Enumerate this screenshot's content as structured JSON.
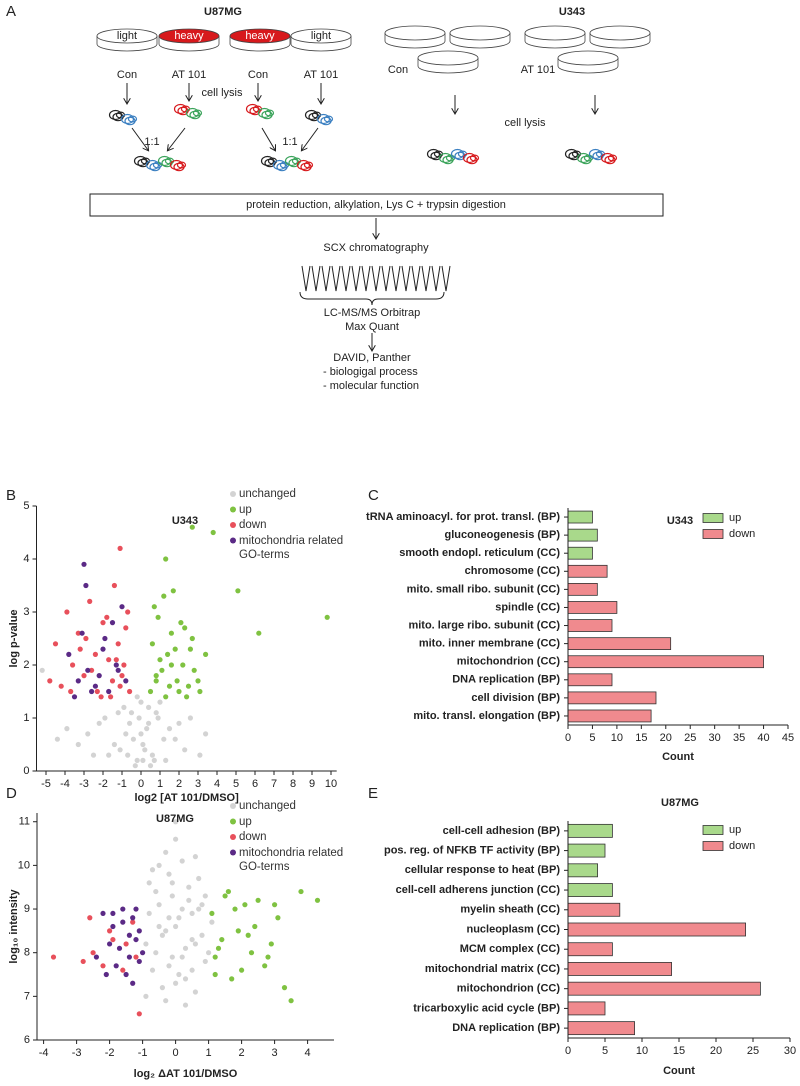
{
  "figure": {
    "panel_labels": [
      "A",
      "B",
      "C",
      "D",
      "E"
    ]
  },
  "diagram": {
    "titles": [
      "U87MG",
      "U343"
    ],
    "dish_labels": [
      "light",
      "heavy",
      "heavy",
      "light"
    ],
    "conditions": [
      "Con",
      "AT 101",
      "Con",
      "AT 101",
      "Con",
      "AT 101"
    ],
    "lysis": [
      "cell lysis",
      "cell lysis"
    ],
    "ratios": [
      "1:1",
      "1:1"
    ],
    "steps": [
      "protein reduction, alkylation, Lys C + trypsin digestion",
      "SCX chromatography",
      "LC-MS/MS Orbitrap",
      "Max Quant",
      "DAVID, Panther",
      "- biologigal process",
      "- molecular function"
    ]
  },
  "chart_data": [
    {
      "type": "scatter",
      "title": "U343",
      "xlabel": "log2 [AT 101/DMSO]",
      "ylabel": "log p-value",
      "xlim": [
        -5.5,
        10.3
      ],
      "ylim": [
        0,
        5
      ],
      "xticks": [
        -5,
        -4,
        -3,
        -2,
        -1,
        0,
        1,
        2,
        3,
        4,
        5,
        6,
        7,
        8,
        9,
        10
      ],
      "yticks": [
        0,
        1,
        2,
        3,
        4,
        5
      ],
      "legend": "upper right",
      "series": [
        {
          "name": "unchanged",
          "color": "#d3d3d3",
          "x": [
            -0.2,
            0.1,
            0.3,
            -0.5,
            0.6,
            -0.8,
            0.9,
            -1.1,
            1.2,
            0.0,
            -0.3,
            0.4,
            -0.6,
            0.7,
            -1.4,
            1.5,
            -0.1,
            0.2,
            -0.9,
            1.0,
            -1.7,
            1.8,
            -2.2,
            2.3,
            -2.8,
            2.6,
            -3.3,
            -3.9,
            3.1,
            0.5,
            -0.4,
            0.8,
            -1.2,
            1.3,
            0.0,
            -0.7,
            0.4,
            -1.9,
            2.0,
            -0.2,
            0.1,
            -2.5,
            -4.4,
            3.4,
            -5.2
          ],
          "y": [
            0.2,
            0.5,
            0.8,
            1.1,
            0.3,
            0.7,
            1.0,
            0.4,
            0.6,
            1.3,
            0.1,
            1.2,
            0.9,
            0.2,
            0.5,
            0.8,
            1.0,
            0.4,
            1.2,
            1.3,
            0.3,
            0.6,
            0.9,
            0.4,
            0.7,
            1.0,
            0.5,
            0.8,
            0.3,
            0.1,
            0.6,
            1.1,
            1.1,
            0.2,
            0.7,
            0.3,
            0.9,
            1.0,
            0.9,
            1.4,
            0.2,
            0.3,
            0.6,
            0.7,
            1.9
          ]
        },
        {
          "name": "up",
          "color": "#7fc241",
          "x": [
            0.5,
            0.8,
            1.0,
            1.3,
            1.6,
            1.9,
            2.2,
            2.5,
            2.8,
            3.1,
            3.4,
            0.6,
            0.9,
            1.2,
            1.5,
            1.8,
            2.1,
            2.4,
            2.7,
            3.0,
            0.7,
            1.1,
            1.4,
            1.7,
            2.0,
            2.3,
            0.8,
            1.6,
            2.6,
            1.3,
            2.7,
            3.8,
            5.1,
            6.2,
            9.8
          ],
          "y": [
            1.5,
            1.8,
            2.1,
            1.4,
            2.6,
            1.7,
            2.0,
            1.6,
            1.9,
            1.5,
            2.2,
            2.4,
            2.9,
            3.3,
            1.6,
            2.3,
            2.8,
            1.4,
            2.5,
            1.7,
            3.1,
            1.9,
            2.2,
            3.4,
            1.5,
            2.7,
            1.7,
            2.0,
            2.3,
            4.0,
            4.6,
            4.5,
            3.4,
            2.6,
            2.9
          ]
        },
        {
          "name": "down",
          "color": "#e8505b",
          "x": [
            -0.6,
            -0.9,
            -1.2,
            -1.5,
            -1.8,
            -2.1,
            -2.4,
            -2.7,
            -3.0,
            -3.3,
            -3.6,
            -3.9,
            -4.2,
            -4.5,
            -0.8,
            -1.1,
            -1.4,
            -1.7,
            -2.0,
            -2.3,
            -2.6,
            -2.9,
            -3.2,
            -0.7,
            -1.0,
            -1.3,
            -1.6,
            -1.1,
            -3.7,
            -4.8
          ],
          "y": [
            1.5,
            2.0,
            2.4,
            1.7,
            2.9,
            1.4,
            2.2,
            3.2,
            1.8,
            2.6,
            2.0,
            3.0,
            1.6,
            2.4,
            2.7,
            1.6,
            3.5,
            2.1,
            2.8,
            1.5,
            1.9,
            2.5,
            2.3,
            3.0,
            1.8,
            2.1,
            1.4,
            4.2,
            1.5,
            1.7
          ]
        },
        {
          "name": "mitochondria related GO-terms",
          "color": "#5b2a86",
          "x": [
            -0.8,
            -1.3,
            -1.7,
            -2.0,
            -2.4,
            -2.8,
            -3.1,
            -3.5,
            -3.8,
            -1.0,
            -1.5,
            -2.2,
            -2.6,
            -3.0,
            -3.3,
            -1.9,
            -2.9,
            -1.2
          ],
          "y": [
            1.7,
            2.0,
            1.5,
            2.3,
            1.6,
            1.9,
            2.6,
            1.4,
            2.2,
            3.1,
            2.8,
            1.8,
            1.5,
            3.9,
            1.7,
            2.5,
            3.5,
            1.9
          ]
        }
      ]
    },
    {
      "type": "barh",
      "title": "U343",
      "xlabel": "Count",
      "xlim": [
        0,
        45
      ],
      "xticks": [
        0,
        5,
        10,
        15,
        20,
        25,
        30,
        35,
        40,
        45
      ],
      "legend": "upper right",
      "categories": [
        "tRNA aminoacyl. for prot. transl. (BP)",
        "gluconeogenesis (BP)",
        "smooth endopl. reticulum (CC)",
        "chromosome (CC)",
        "mito. small ribo. subunit (CC)",
        "spindle (CC)",
        "mito. large ribo. subunit (CC)",
        "mito. inner membrane (CC)",
        "mitochondrion (CC)",
        "DNA replication (BP)",
        "cell division (BP)",
        "mito. transl. elongation (BP)"
      ],
      "series": [
        {
          "name": "up",
          "color": "#a9d98b",
          "values": [
            5,
            6,
            5,
            null,
            null,
            null,
            null,
            null,
            null,
            null,
            null,
            null
          ]
        },
        {
          "name": "down",
          "color": "#f08a8e",
          "values": [
            null,
            null,
            null,
            8,
            6,
            10,
            9,
            21,
            40,
            9,
            18,
            17
          ]
        }
      ]
    },
    {
      "type": "scatter",
      "title": "U87MG",
      "xlabel": "log₂ ΔAT 101/DMSO",
      "ylabel": "log₁₀ intensity",
      "xlim": [
        -4.2,
        4.8
      ],
      "ylim": [
        6,
        11.2
      ],
      "xticks": [
        -4,
        -3,
        -2,
        -1,
        0,
        1,
        2,
        3,
        4
      ],
      "yticks": [
        6,
        7,
        8,
        9,
        10,
        11
      ],
      "legend": "upper right",
      "series": [
        {
          "name": "unchanged",
          "color": "#d3d3d3",
          "x": [
            -0.9,
            -0.7,
            -0.5,
            -0.3,
            -0.1,
            0.1,
            0.3,
            0.5,
            0.7,
            0.9,
            -0.8,
            -0.6,
            -0.4,
            -0.2,
            0.0,
            0.2,
            0.4,
            0.6,
            0.8,
            1.0,
            -0.9,
            -0.5,
            -0.1,
            0.3,
            0.7,
            1.1,
            -0.7,
            -0.3,
            0.1,
            0.5,
            0.9,
            -0.6,
            -0.2,
            0.2,
            0.6,
            -0.4,
            0.0,
            0.4,
            -0.2,
            0.2,
            0.0,
            -0.5,
            0.5,
            -0.8,
            0.8,
            -0.3,
            0.3,
            0.0,
            -0.1,
            0.6
          ],
          "y": [
            8.2,
            7.6,
            9.1,
            8.5,
            7.9,
            8.8,
            7.4,
            8.3,
            9.0,
            7.8,
            8.9,
            9.4,
            7.2,
            9.8,
            8.6,
            10.1,
            9.5,
            7.1,
            8.4,
            8.0,
            7.0,
            10.0,
            9.3,
            8.1,
            9.7,
            8.7,
            9.9,
            6.9,
            7.5,
            8.9,
            9.3,
            8.0,
            7.7,
            9.0,
            10.2,
            8.4,
            10.6,
            9.2,
            8.8,
            7.9,
            7.3,
            8.6,
            7.6,
            9.6,
            9.1,
            10.3,
            6.8,
            11.0,
            9.6,
            8.2
          ]
        },
        {
          "name": "up",
          "color": "#7fc241",
          "x": [
            1.1,
            1.3,
            1.5,
            1.7,
            1.9,
            2.1,
            2.3,
            2.5,
            2.7,
            2.9,
            3.1,
            3.3,
            3.5,
            3.8,
            4.3,
            1.2,
            1.6,
            2.0,
            2.4,
            2.8,
            1.4,
            1.8,
            2.2,
            3.0,
            1.2
          ],
          "y": [
            8.9,
            8.1,
            9.3,
            7.4,
            8.5,
            9.1,
            8.0,
            9.2,
            7.7,
            8.2,
            8.8,
            7.2,
            6.9,
            9.4,
            9.2,
            7.9,
            9.4,
            7.6,
            8.6,
            7.9,
            8.3,
            9.0,
            8.4,
            9.1,
            7.5
          ]
        },
        {
          "name": "down",
          "color": "#e8505b",
          "x": [
            -3.7,
            -2.8,
            -2.5,
            -2.2,
            -1.9,
            -1.6,
            -1.3,
            -1.1,
            -2.0,
            -1.5,
            -1.2,
            -2.6
          ],
          "y": [
            7.9,
            7.8,
            8.0,
            7.7,
            8.3,
            7.6,
            8.7,
            6.6,
            8.5,
            8.2,
            7.9,
            8.8
          ]
        },
        {
          "name": "mitochondria related GO-terms",
          "color": "#5b2a86",
          "x": [
            -2.2,
            -1.9,
            -1.6,
            -1.3,
            -1.1,
            -2.0,
            -1.7,
            -1.4,
            -1.2,
            -1.8,
            -1.5,
            -1.1,
            -2.1,
            -1.3,
            -1.6,
            -1.9,
            -1.2,
            -1.4,
            -1.0,
            -2.4
          ],
          "y": [
            8.9,
            8.6,
            9.0,
            8.8,
            8.5,
            8.2,
            8.1,
            7.9,
            8.3,
            7.7,
            7.5,
            7.8,
            7.5,
            7.3,
            8.7,
            8.9,
            9.0,
            8.4,
            8.0,
            7.9
          ]
        }
      ]
    },
    {
      "type": "barh",
      "title": "U87MG",
      "xlabel": "Count",
      "xlim": [
        0,
        30
      ],
      "xticks": [
        0,
        5,
        10,
        15,
        20,
        25,
        30
      ],
      "legend": "upper right",
      "categories": [
        "cell-cell adhesion (BP)",
        "pos. reg. of NFKB TF activity (BP)",
        "cellular response to heat (BP)",
        "cell-cell adherens junction (CC)",
        "myelin sheath (CC)",
        "nucleoplasm (CC)",
        "MCM complex (CC)",
        "mitochondrial matrix (CC)",
        "mitochondrion (CC)",
        "tricarboxylic acid cycle (BP)",
        "DNA replication (BP)"
      ],
      "series": [
        {
          "name": "up",
          "color": "#a9d98b",
          "values": [
            6,
            5,
            4,
            6,
            null,
            null,
            null,
            null,
            null,
            null,
            null
          ]
        },
        {
          "name": "down",
          "color": "#f08a8e",
          "values": [
            null,
            null,
            null,
            null,
            7,
            24,
            6,
            14,
            26,
            5,
            9
          ]
        }
      ]
    }
  ]
}
